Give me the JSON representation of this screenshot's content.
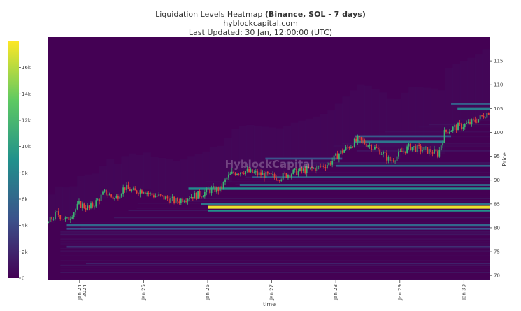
{
  "chart_data": {
    "type": "heatmap",
    "title_prefix": "Liquidation Levels Heatmap ",
    "title_bold": "(Binance, SOL - 7 days)",
    "subtitle": "hyblockcapital.com",
    "updated": "Last Updated: 30 Jan, 12:00:00 (UTC)",
    "watermark": "HyblockCapital",
    "xlabel": "time",
    "ylabel": "Price",
    "ylim": [
      69,
      120
    ],
    "y_ticks": [
      70,
      75,
      80,
      85,
      90,
      95,
      100,
      105,
      110,
      115
    ],
    "x_ticks": [
      {
        "label": "Jan 24",
        "label2": "2024",
        "t": 0.5
      },
      {
        "label": "Jan 25",
        "label2": "",
        "t": 1.5
      },
      {
        "label": "Jan 26",
        "label2": "",
        "t": 2.5
      },
      {
        "label": "Jan 27",
        "label2": "",
        "t": 3.5
      },
      {
        "label": "Jan 28",
        "label2": "",
        "t": 4.5
      },
      {
        "label": "Jan 29",
        "label2": "",
        "t": 5.5
      },
      {
        "label": "Jan 30",
        "label2": "",
        "t": 6.5
      }
    ],
    "xlim": [
      0,
      6.9
    ],
    "colorbar": {
      "ticks": [
        {
          "v": 0,
          "label": "0"
        },
        {
          "v": 2000,
          "label": "2k"
        },
        {
          "v": 4000,
          "label": "4k"
        },
        {
          "v": 6000,
          "label": "6k"
        },
        {
          "v": 8000,
          "label": "8k"
        },
        {
          "v": 10000,
          "label": "10k"
        },
        {
          "v": 12000,
          "label": "12k"
        },
        {
          "v": 14000,
          "label": "14k"
        },
        {
          "v": 16000,
          "label": "16k"
        }
      ],
      "max": 18000,
      "colors": [
        "#440154",
        "#3b528b",
        "#21918c",
        "#5ec962",
        "#fde725"
      ]
    },
    "price_path": [
      [
        0.0,
        81
      ],
      [
        0.15,
        83
      ],
      [
        0.3,
        81.5
      ],
      [
        0.5,
        85
      ],
      [
        0.65,
        84
      ],
      [
        0.8,
        86
      ],
      [
        0.9,
        87.5
      ],
      [
        1.05,
        86
      ],
      [
        1.2,
        88.5
      ],
      [
        1.35,
        87.5
      ],
      [
        1.5,
        88
      ],
      [
        1.6,
        87
      ],
      [
        1.75,
        86.5
      ],
      [
        1.9,
        86
      ],
      [
        2.0,
        85.5
      ],
      [
        2.2,
        86.5
      ],
      [
        2.4,
        87
      ],
      [
        2.55,
        88
      ],
      [
        2.7,
        88
      ],
      [
        2.8,
        90.5
      ],
      [
        2.9,
        91.5
      ],
      [
        3.05,
        92
      ],
      [
        3.2,
        91.5
      ],
      [
        3.4,
        91
      ],
      [
        3.6,
        90.5
      ],
      [
        3.8,
        91.5
      ],
      [
        4.0,
        92
      ],
      [
        4.2,
        92.5
      ],
      [
        4.4,
        93.5
      ],
      [
        4.55,
        95.5
      ],
      [
        4.7,
        97
      ],
      [
        4.85,
        98.5
      ],
      [
        5.0,
        97.5
      ],
      [
        5.2,
        96
      ],
      [
        5.35,
        94
      ],
      [
        5.5,
        95.5
      ],
      [
        5.65,
        97
      ],
      [
        5.8,
        96.5
      ],
      [
        6.0,
        96
      ],
      [
        6.1,
        95.5
      ],
      [
        6.2,
        100
      ],
      [
        6.35,
        101
      ],
      [
        6.5,
        101.5
      ],
      [
        6.6,
        102
      ],
      [
        6.75,
        103
      ],
      [
        6.9,
        104.5
      ]
    ],
    "bands": [
      {
        "y": 84.3,
        "h": 0.6,
        "v": 17500,
        "t0": 2.5,
        "t1": 6.9
      },
      {
        "y": 83.6,
        "h": 0.4,
        "v": 9000,
        "t0": 2.5,
        "t1": 6.9
      },
      {
        "y": 85.0,
        "h": 0.4,
        "v": 7000,
        "t0": 2.4,
        "t1": 6.9
      },
      {
        "y": 80.5,
        "h": 0.5,
        "v": 6000,
        "t0": 0.3,
        "t1": 6.9
      },
      {
        "y": 79.8,
        "h": 0.4,
        "v": 4500,
        "t0": 0.3,
        "t1": 6.9
      },
      {
        "y": 88.2,
        "h": 0.5,
        "v": 8500,
        "t0": 2.2,
        "t1": 6.9
      },
      {
        "y": 89.0,
        "h": 0.4,
        "v": 6500,
        "t0": 3.0,
        "t1": 6.9
      },
      {
        "y": 90.6,
        "h": 0.4,
        "v": 5500,
        "t0": 3.2,
        "t1": 6.9
      },
      {
        "y": 93.0,
        "h": 0.4,
        "v": 6000,
        "t0": 4.5,
        "t1": 6.9
      },
      {
        "y": 94.5,
        "h": 0.4,
        "v": 4500,
        "t0": 3.4,
        "t1": 4.6
      },
      {
        "y": 98.0,
        "h": 0.5,
        "v": 7000,
        "t0": 4.8,
        "t1": 6.2
      },
      {
        "y": 99.2,
        "h": 0.4,
        "v": 5000,
        "t0": 4.8,
        "t1": 6.3
      },
      {
        "y": 105.0,
        "h": 0.5,
        "v": 7500,
        "t0": 6.4,
        "t1": 6.9
      },
      {
        "y": 106.0,
        "h": 0.4,
        "v": 5500,
        "t0": 6.3,
        "t1": 6.9
      },
      {
        "y": 76.0,
        "h": 0.4,
        "v": 2500,
        "t0": 0.3,
        "t1": 6.9
      },
      {
        "y": 72.5,
        "h": 0.3,
        "v": 1800,
        "t0": 0.6,
        "t1": 6.9
      }
    ]
  }
}
